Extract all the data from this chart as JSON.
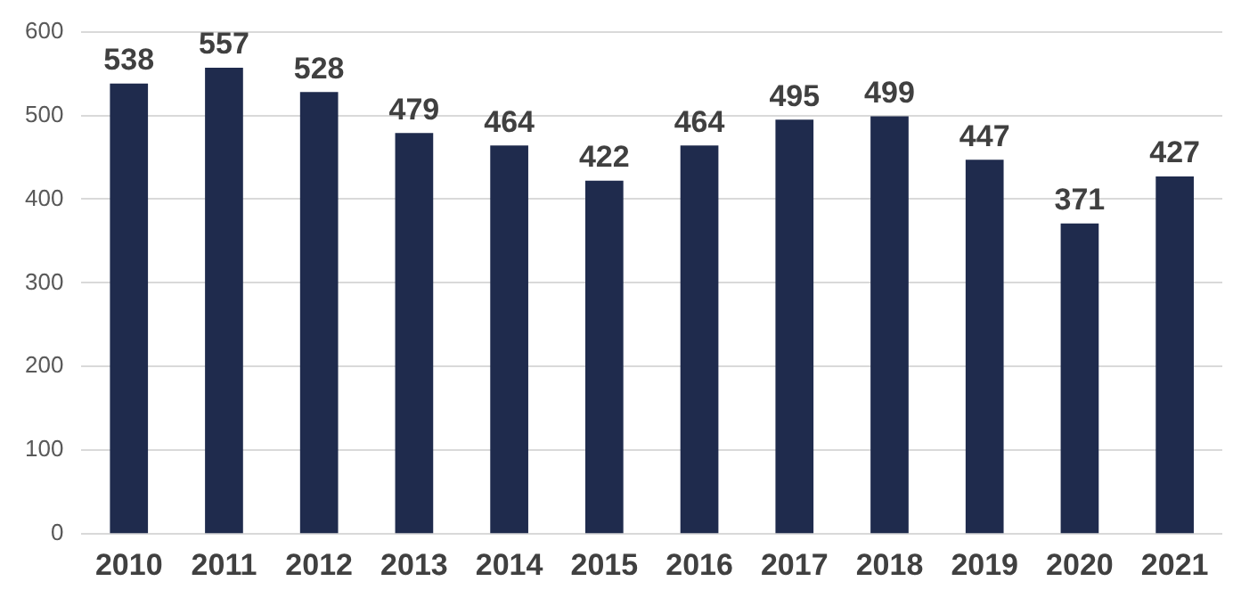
{
  "chart_data": {
    "type": "bar",
    "categories": [
      "2010",
      "2011",
      "2012",
      "2013",
      "2014",
      "2015",
      "2016",
      "2017",
      "2018",
      "2019",
      "2020",
      "2021"
    ],
    "values": [
      538,
      557,
      528,
      479,
      464,
      422,
      464,
      495,
      499,
      447,
      371,
      427
    ],
    "color": "#1f2b4d",
    "ylim": [
      0,
      600
    ],
    "yticks": [
      0,
      100,
      200,
      300,
      400,
      500,
      600
    ],
    "grid": "y",
    "data_labels": true,
    "legend": false
  }
}
